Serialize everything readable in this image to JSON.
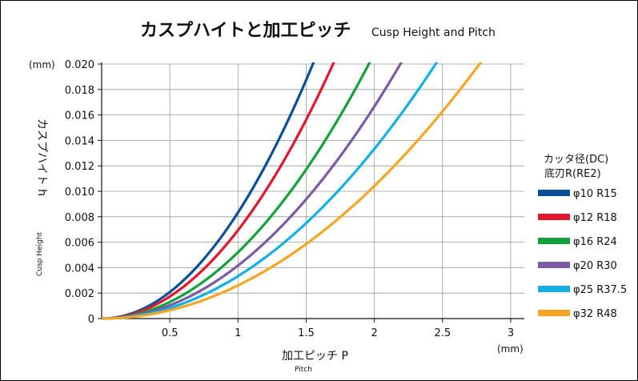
{
  "chart_data": {
    "type": "line",
    "title": "カスプハイトと加工ピッチ",
    "subtitle": "Cusp Height and Pitch",
    "xlabel": "加工ピッチ P",
    "xlabel_en": "Pitch",
    "x_unit": "(mm)",
    "ylabel": "カスプハイト h",
    "ylabel_en": "Cusp Height",
    "y_unit": "(mm)",
    "xlim": [
      0,
      3.1
    ],
    "ylim": [
      0,
      0.02
    ],
    "x_ticks": [
      "0.5",
      "1",
      "1.5",
      "2",
      "2.5",
      "3"
    ],
    "x_tick_values": [
      0.5,
      1,
      1.5,
      2,
      2.5,
      3
    ],
    "y_ticks": [
      "0",
      "0.002",
      "0.004",
      "0.006",
      "0.008",
      "0.010",
      "0.012",
      "0.014",
      "0.016",
      "0.018",
      "0.020"
    ],
    "y_tick_values": [
      0,
      0.002,
      0.004,
      0.006,
      0.008,
      0.01,
      0.012,
      0.014,
      0.016,
      0.018,
      0.02
    ],
    "grid": true,
    "legend_title_line1": "カッタ径(DC)",
    "legend_title_line2": "底刃R(RE2)",
    "legend_position": "right",
    "series": [
      {
        "name": "φ10 R15",
        "color": "#0a4f9c",
        "R": 15
      },
      {
        "name": "φ12 R18",
        "color": "#e3162b",
        "R": 18
      },
      {
        "name": "φ16 R24",
        "color": "#12a23a",
        "R": 24
      },
      {
        "name": "φ20 R30",
        "color": "#7b5aa6",
        "R": 30
      },
      {
        "name": "φ25 R37.5",
        "color": "#12b0e6",
        "R": 37.5
      },
      {
        "name": "φ32 R48",
        "color": "#f5a623",
        "R": 48
      }
    ]
  }
}
